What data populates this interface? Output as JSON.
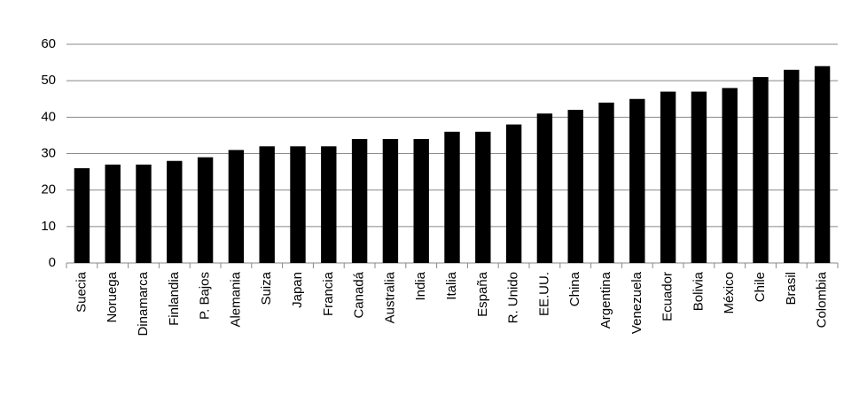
{
  "chart_data": {
    "type": "bar",
    "categories": [
      "Suecia",
      "Noruega",
      "Dinamarca",
      "Finlandia",
      "P. Bajos",
      "Alemania",
      "Suiza",
      "Japan",
      "Francia",
      "Canadá",
      "Australia",
      "India",
      "Italia",
      "España",
      "R. Unido",
      "EE.UU.",
      "China",
      "Argentina",
      "Venezuela",
      "Ecuador",
      "Bolivia",
      "México",
      "Chile",
      "Brasil",
      "Colombia"
    ],
    "values": [
      26,
      27,
      27,
      28,
      29,
      31,
      32,
      32,
      32,
      34,
      34,
      34,
      36,
      36,
      38,
      41,
      42,
      44,
      45,
      47,
      47,
      48,
      51,
      53,
      54
    ],
    "color": "#000000",
    "ylim": [
      0,
      60
    ],
    "yticks": [
      0,
      10,
      20,
      30,
      40,
      50,
      60
    ],
    "grid": true
  }
}
